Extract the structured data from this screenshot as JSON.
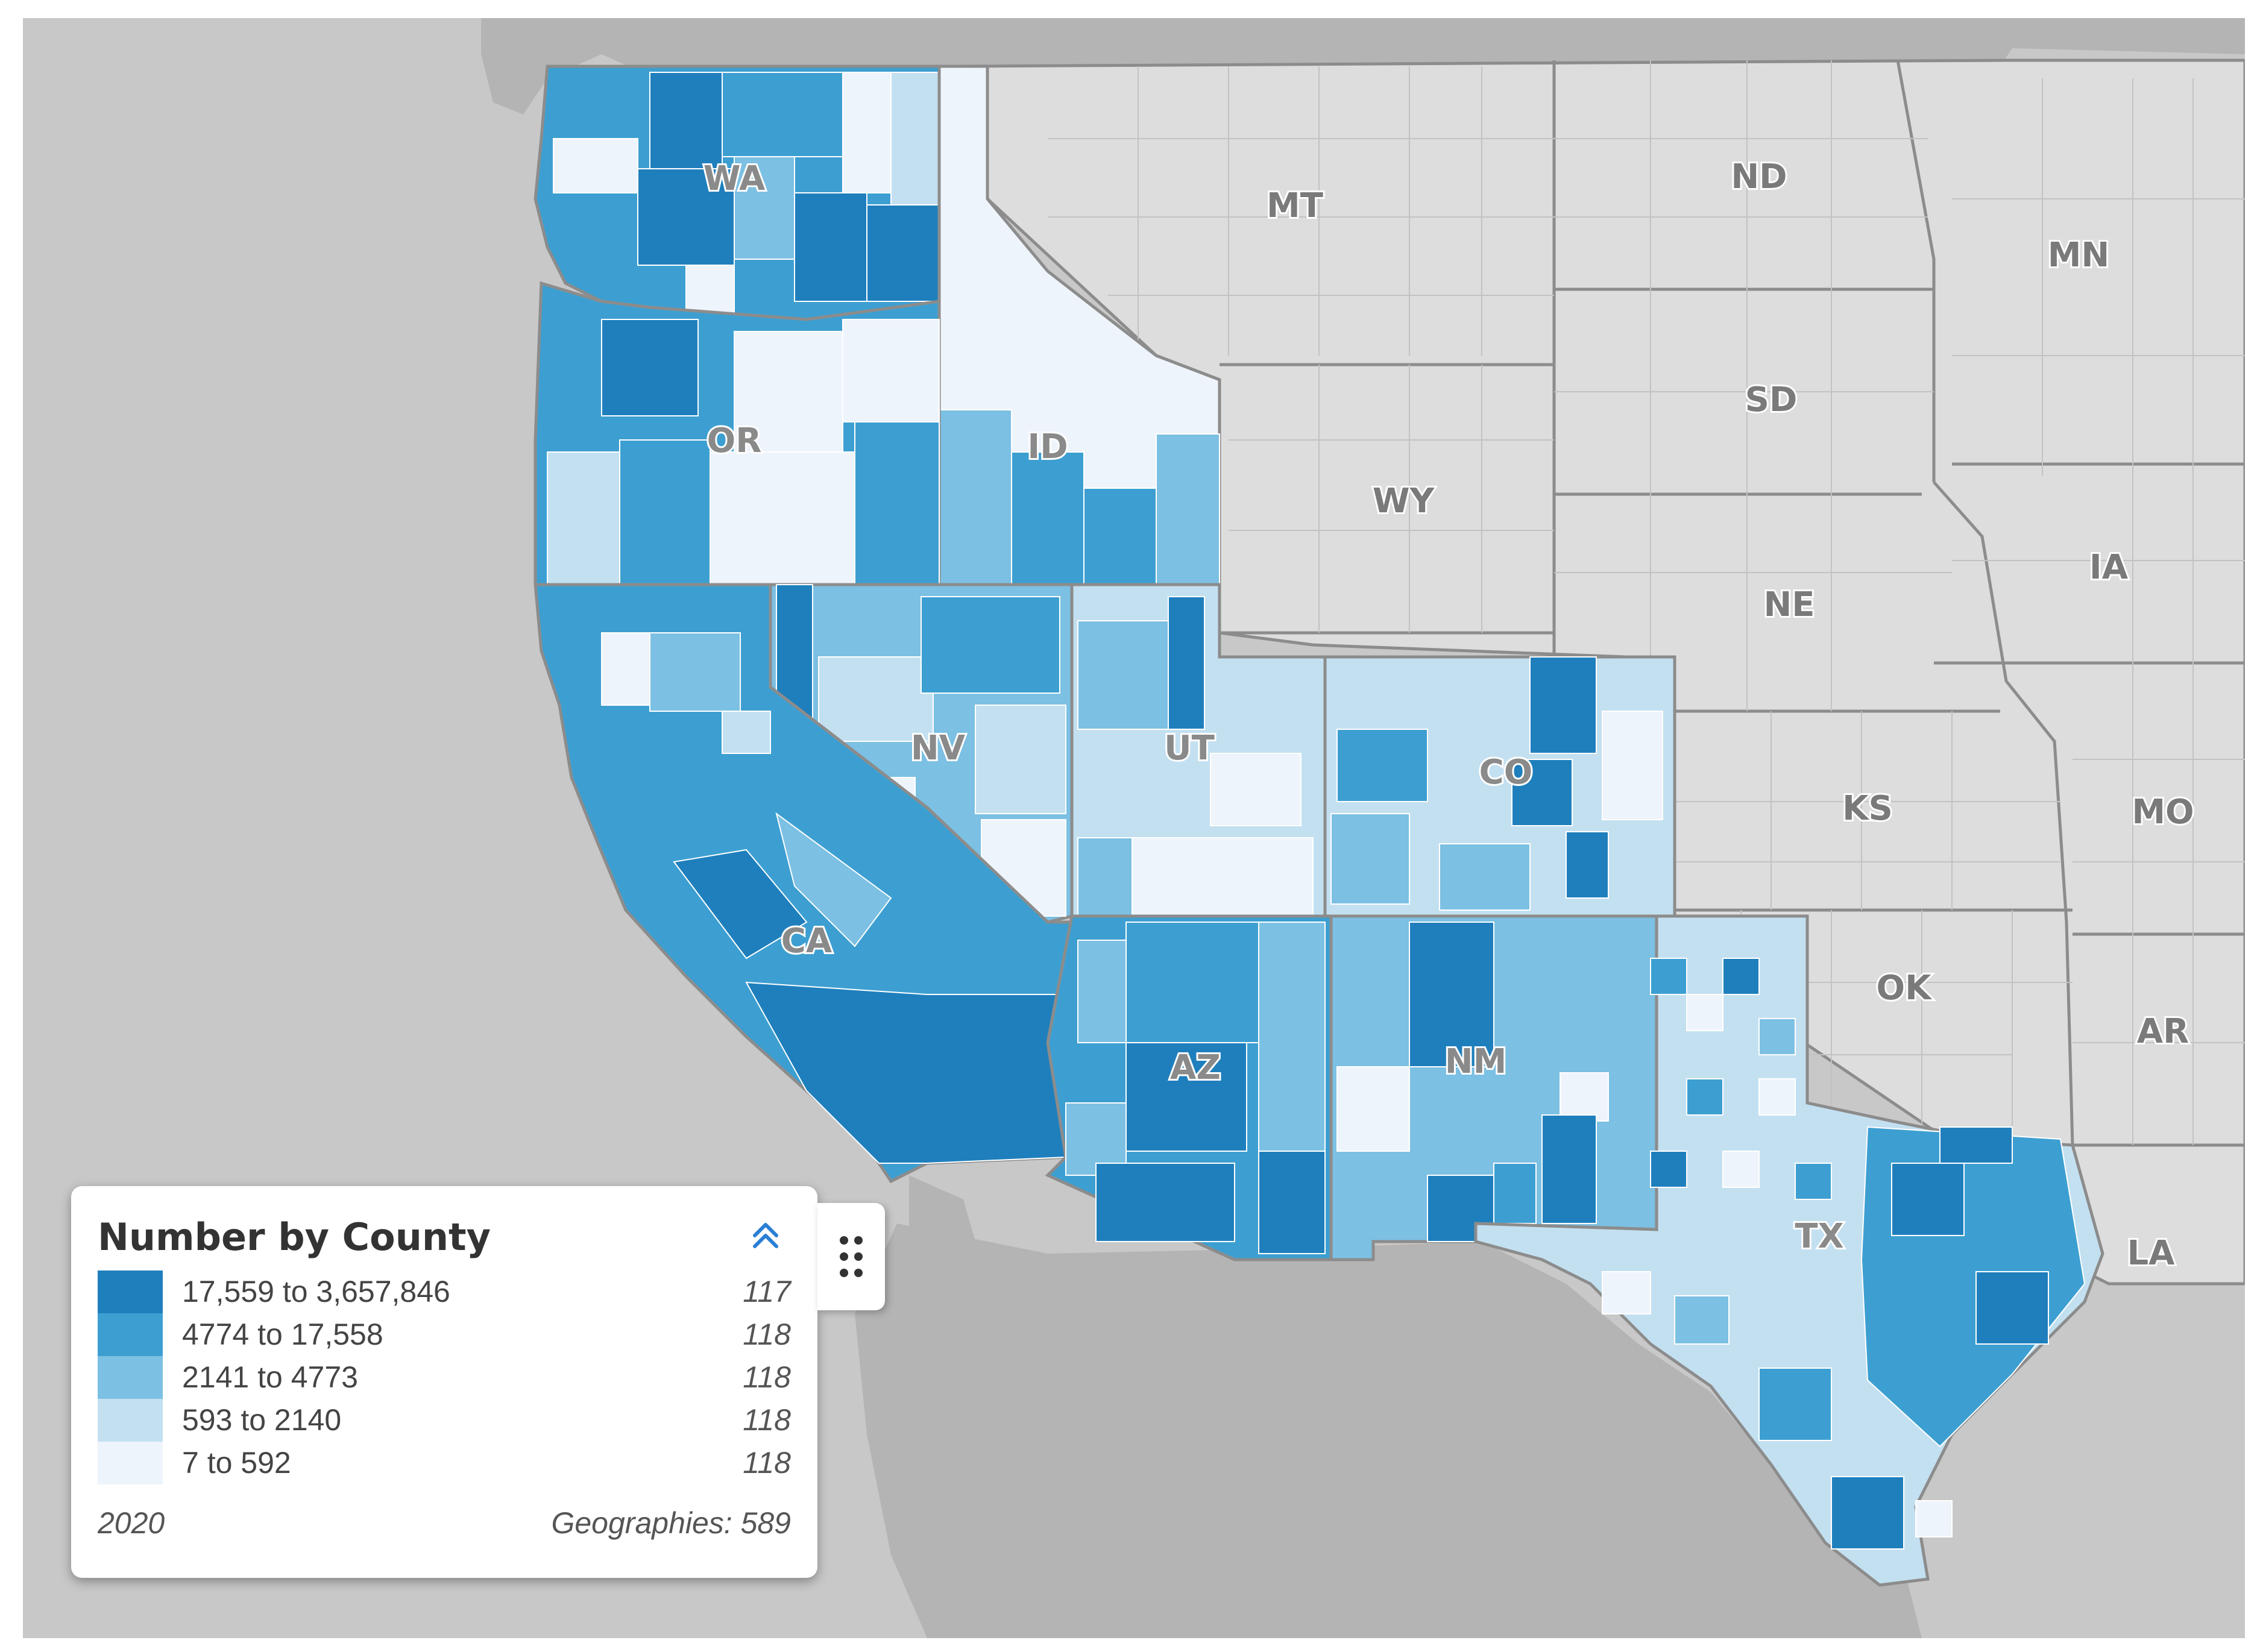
{
  "map": {
    "states": [
      {
        "abbr": "WA",
        "shade": "dark"
      },
      {
        "abbr": "OR",
        "shade": "dark"
      },
      {
        "abbr": "ID",
        "shade": "dark"
      },
      {
        "abbr": "MT",
        "shade": "grey"
      },
      {
        "abbr": "ND",
        "shade": "grey"
      },
      {
        "abbr": "MN",
        "shade": "grey"
      },
      {
        "abbr": "SD",
        "shade": "grey"
      },
      {
        "abbr": "WY",
        "shade": "grey"
      },
      {
        "abbr": "NE",
        "shade": "grey"
      },
      {
        "abbr": "IA",
        "shade": "grey"
      },
      {
        "abbr": "NV",
        "shade": "dark"
      },
      {
        "abbr": "UT",
        "shade": "dark"
      },
      {
        "abbr": "CO",
        "shade": "dark"
      },
      {
        "abbr": "KS",
        "shade": "grey"
      },
      {
        "abbr": "MO",
        "shade": "grey"
      },
      {
        "abbr": "CA",
        "shade": "dark"
      },
      {
        "abbr": "OK",
        "shade": "grey"
      },
      {
        "abbr": "AR",
        "shade": "grey"
      },
      {
        "abbr": "AZ",
        "shade": "dark"
      },
      {
        "abbr": "NM",
        "shade": "dark"
      },
      {
        "abbr": "TX",
        "shade": "dark"
      },
      {
        "abbr": "LA",
        "shade": "grey"
      }
    ],
    "colors": {
      "ocean": "#c8c8c8",
      "land_other": "#b4b4b4",
      "no_data_state": "#dddddd",
      "state_border": "#8c8c8c"
    }
  },
  "legend": {
    "title": "Number by County",
    "collapse_icon": "chevron-double-up-icon",
    "classes": [
      {
        "range": "17,559 to 3,657,846",
        "count": "117",
        "color": "#1f7fbd"
      },
      {
        "range": "4774 to 17,558",
        "count": "118",
        "color": "#3d9fd1"
      },
      {
        "range": "2141 to 4773",
        "count": "118",
        "color": "#7cc0e3"
      },
      {
        "range": "593 to 2140",
        "count": "118",
        "color": "#c3e0f1"
      },
      {
        "range": "7 to 592",
        "count": "118",
        "color": "#eef4fb"
      }
    ],
    "year": "2020",
    "geographies": "Geographies: 589"
  },
  "drag_handle": {
    "icon": "drag-handle-icon"
  }
}
